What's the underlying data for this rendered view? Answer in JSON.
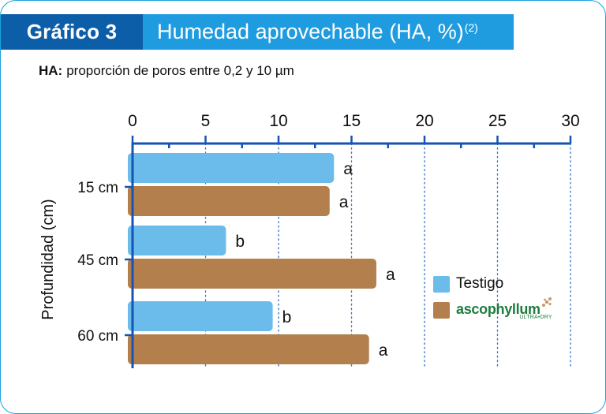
{
  "header": {
    "chip_label": "Gráfico 3",
    "title": "Humedad aprovechable (HA, %)",
    "title_ref": "(2)"
  },
  "subtitle": {
    "term": "HA:",
    "text": "proporción de poros entre 0,2 y 10 µm"
  },
  "chart_data": {
    "type": "bar",
    "orientation": "horizontal",
    "title": "Humedad aprovechable (HA, %)",
    "subtitle": "HA: proporción de poros entre 0,2 y 10 µm",
    "xlabel": "",
    "ylabel": "Profundidad (cm)",
    "categories": [
      "15 cm",
      "45 cm",
      "60 cm"
    ],
    "xlim": [
      0,
      30
    ],
    "x_ticks": [
      0,
      5,
      10,
      15,
      20,
      25,
      30
    ],
    "x_tick_labels": [
      "0",
      "5",
      "10",
      "15",
      "20",
      "25",
      "30"
    ],
    "x_axis_position": "top",
    "grid": "vertical dotted",
    "legend_position": "right",
    "series": [
      {
        "name": "Testigo",
        "color": "#6cbceb",
        "values": [
          13.8,
          6.4,
          9.6
        ],
        "labels": [
          "a",
          "b",
          "b"
        ]
      },
      {
        "name": "ascophyllum ULTRA•DRY",
        "color": "#b27f4d",
        "values": [
          13.5,
          16.7,
          16.2
        ],
        "labels": [
          "a",
          "a",
          "a"
        ]
      }
    ]
  },
  "legend": {
    "testigo_label": "Testigo",
    "brand_name": "ascophyllum",
    "brand_sub": "ULTRA•DRY"
  },
  "colors": {
    "frame_border": "#1aa3dd",
    "header_bar": "#1f9ce0",
    "header_chip": "#0c5ea8",
    "axis": "#1554b4",
    "testigo": "#6cbceb",
    "ascophyllum": "#b27f4d",
    "brand_green": "#1d7c3e",
    "brand_accent": "#c9986a"
  }
}
